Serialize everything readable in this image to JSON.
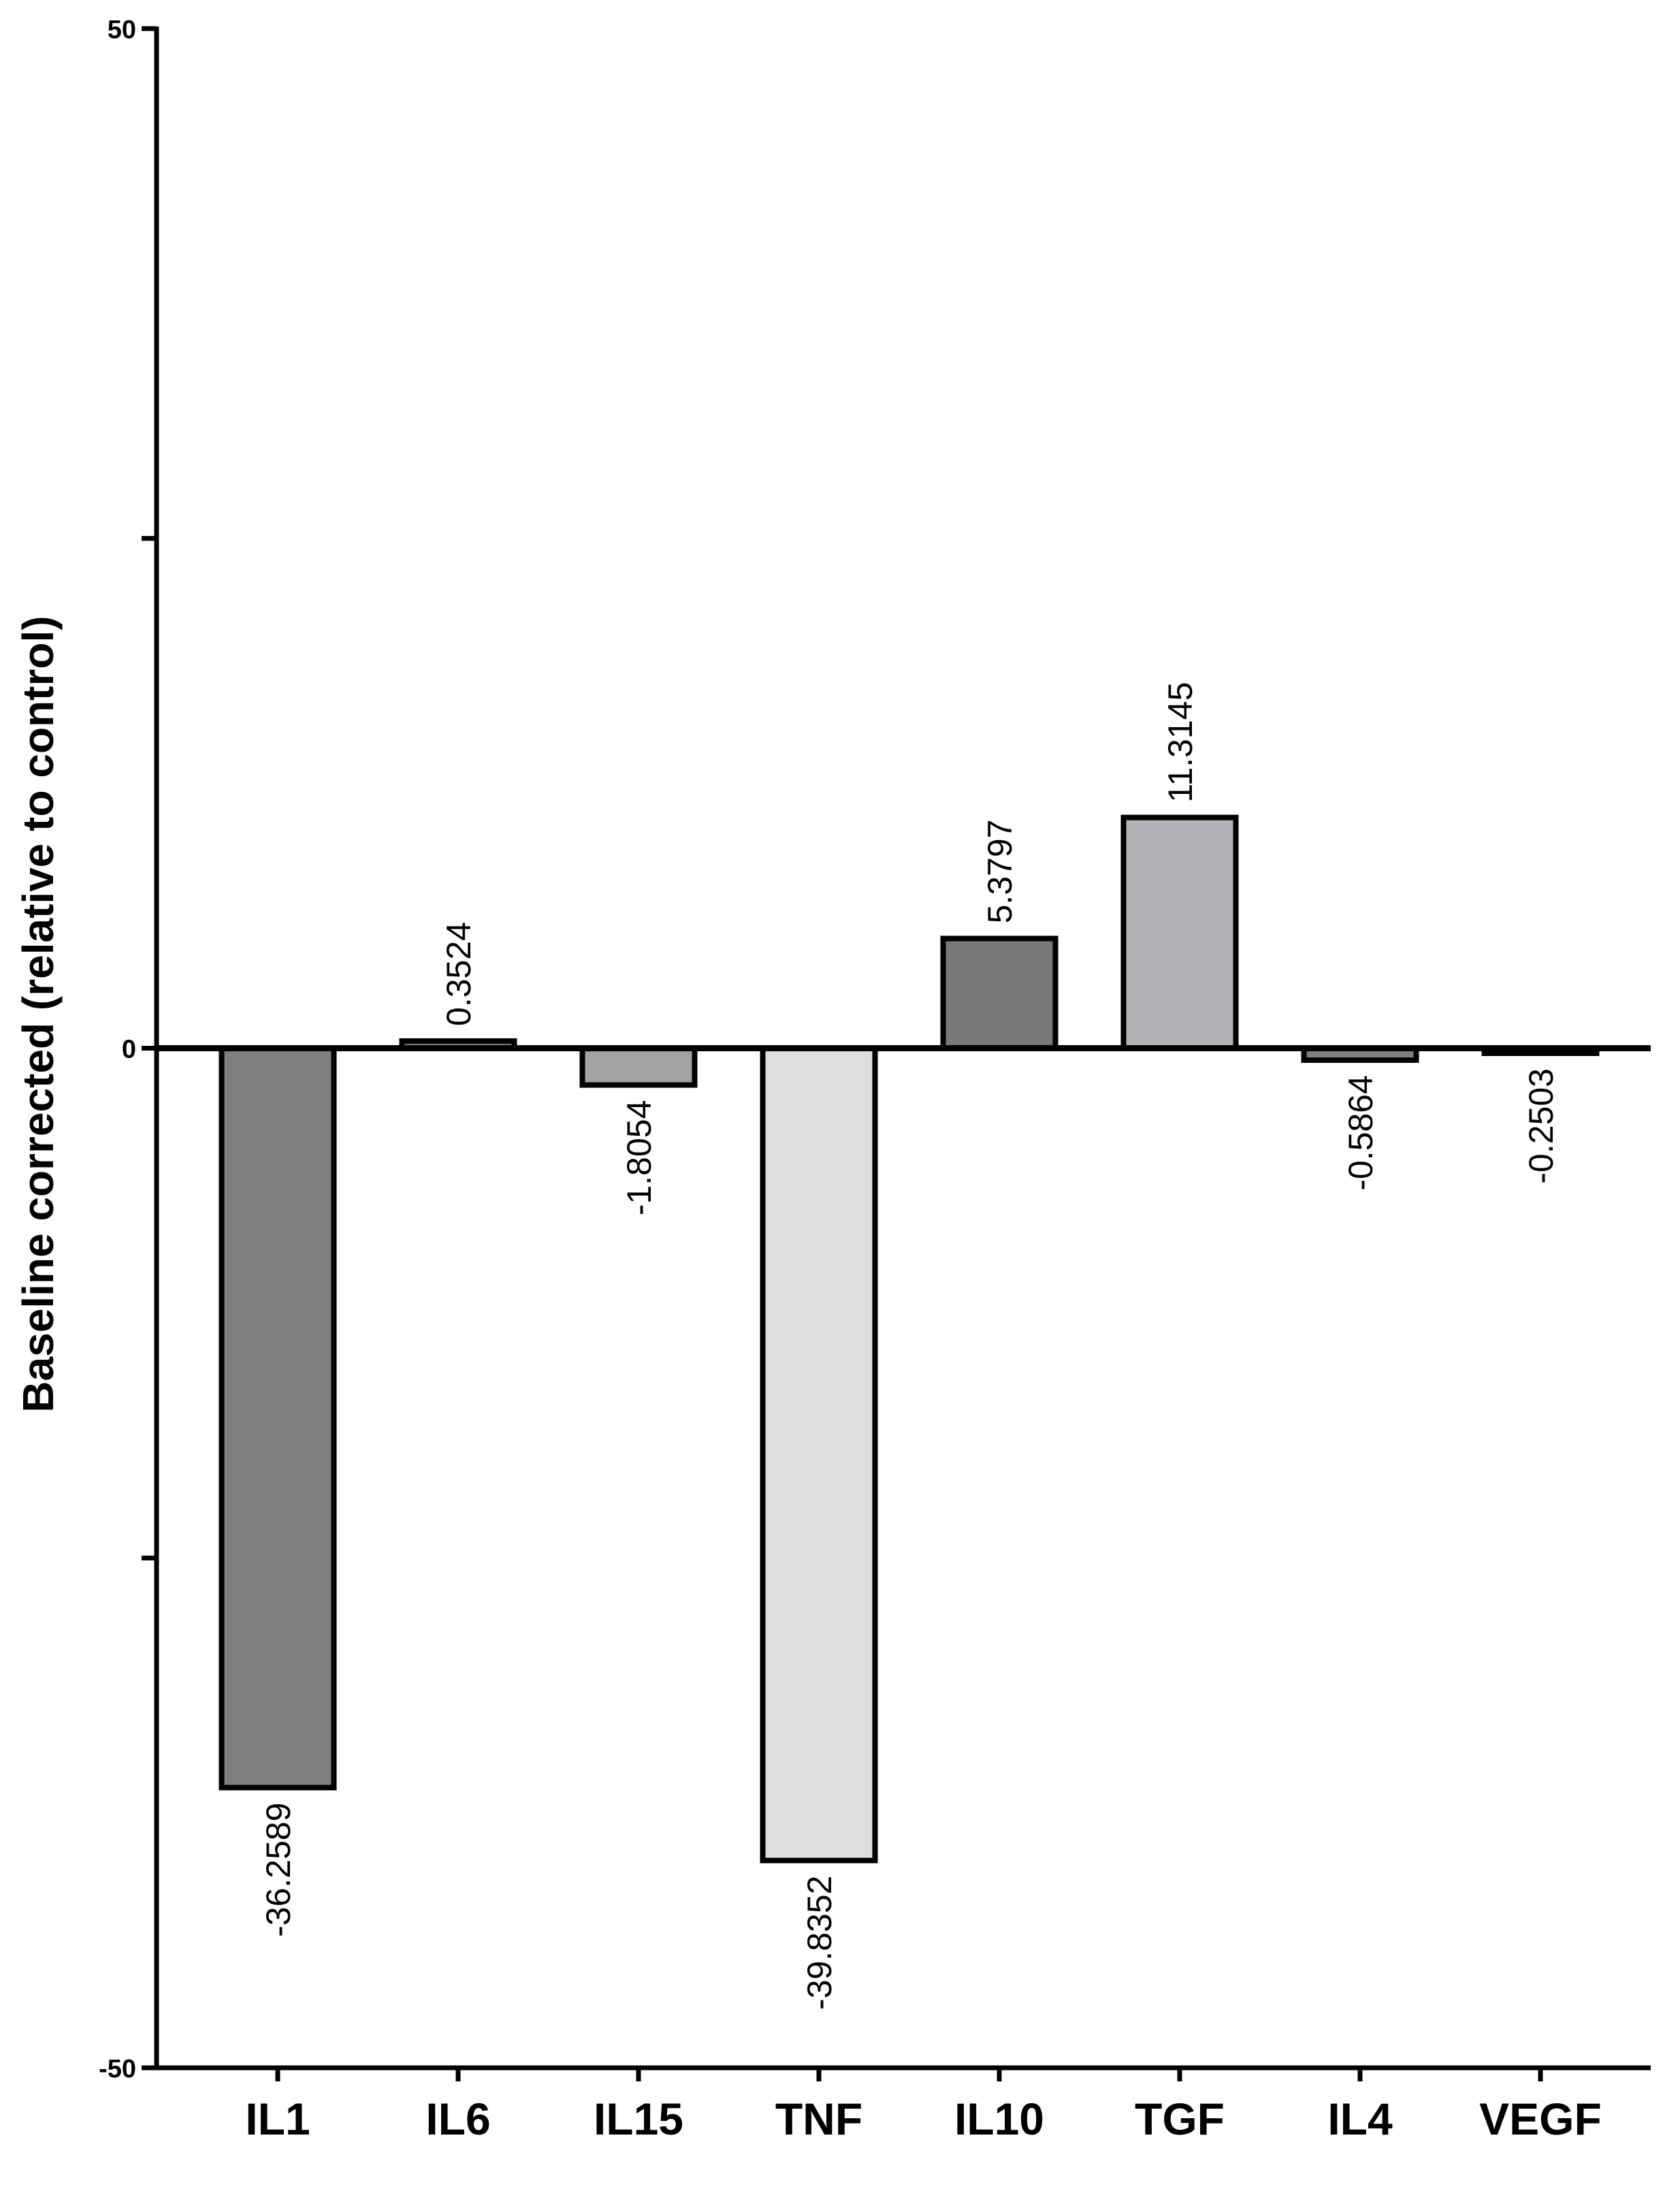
{
  "chart_data": {
    "type": "bar",
    "title": "",
    "xlabel": "",
    "ylabel": "Baseline corrected (relative to control)",
    "ylim": [
      -50,
      50
    ],
    "yticks": [
      -50,
      -25,
      0,
      25,
      50
    ],
    "ytick_labels": [
      "-50",
      "",
      "0",
      "",
      "50"
    ],
    "grid": false,
    "legend": "none",
    "categories": [
      "IL1",
      "IL6",
      "IL15",
      "TNF",
      "IL10",
      "TGF",
      "IL4",
      "VEGF"
    ],
    "values": [
      -36.2589,
      0.3524,
      -1.8054,
      -39.8352,
      5.3797,
      11.3145,
      -0.5864,
      -0.2503
    ],
    "value_labels": [
      "-36.2589",
      "0.3524",
      "-1.8054",
      "-39.8352",
      "5.3797",
      "11.3145",
      "-0.5864",
      "-0.2503"
    ],
    "colors": [
      "#7f7f7f",
      "#7a7a7a",
      "#a2a2a2",
      "#dedede",
      "#787878",
      "#b2b2b6",
      "#7f7f7f",
      "#7f7f7f"
    ],
    "edge_color": "#000000"
  }
}
